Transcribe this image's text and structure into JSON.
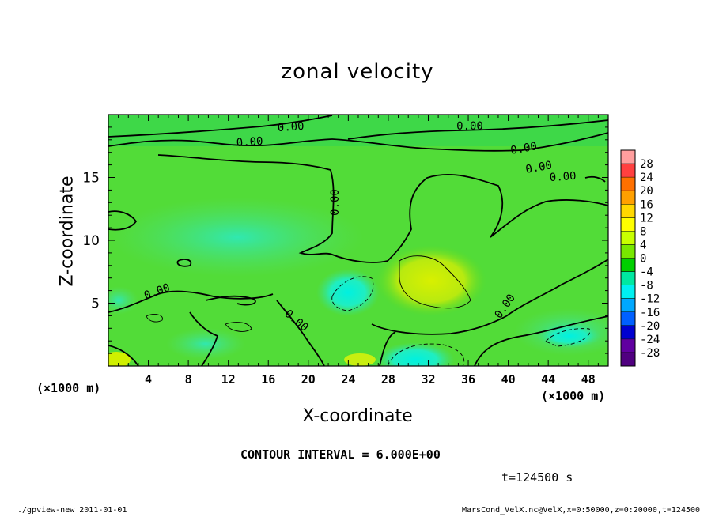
{
  "title": "zonal velocity",
  "xunit_left": "(×1000 m)",
  "xunit_right": "(×1000 m)",
  "contour_interval": "CONTOUR INTERVAL = 6.000E+00",
  "time_label": "t=124500 s",
  "footer_left": "./gpview-new  2011-01-01",
  "footer_right": "MarsCond_VelX.nc@VelX,x=0:50000,z=0:20000,t=124500",
  "chart_data": {
    "type": "heatmap",
    "title": "zonal velocity",
    "xlabel": "X-coordinate",
    "ylabel": "Z-coordinate",
    "xlim": [
      0,
      50
    ],
    "ylim": [
      0,
      20
    ],
    "x_ticks": [
      4,
      8,
      12,
      16,
      20,
      24,
      28,
      32,
      36,
      40,
      44,
      48
    ],
    "y_ticks": [
      5,
      10,
      15
    ],
    "contour_labels": [
      "0.00",
      "0.00",
      "0.00",
      "0.00",
      "0.00",
      "0.00",
      "0.00",
      "0.00",
      "0.00",
      "0.00"
    ],
    "colorbar_levels": [
      28,
      24,
      20,
      16,
      12,
      8,
      4,
      0,
      -4,
      -8,
      -12,
      -16,
      -20,
      -24,
      -28
    ],
    "colorbar_colors": [
      "#ff9e9e",
      "#ff4040",
      "#ff7000",
      "#ffa000",
      "#ffd800",
      "#ffff00",
      "#c8ff00",
      "#78e800",
      "#00d000",
      "#00e8a0",
      "#00f0f0",
      "#00a8ff",
      "#0060ff",
      "#0000d0",
      "#6000a0",
      "#500080"
    ],
    "features": [
      {
        "kind": "positive-max",
        "x": 31,
        "z": 7,
        "value": 8
      },
      {
        "kind": "negative-min",
        "x": 23,
        "z": 6,
        "value": -8
      },
      {
        "kind": "negative-min",
        "x": 31,
        "z": 1,
        "value": -8
      },
      {
        "kind": "negative-min",
        "x": 46,
        "z": 2.5,
        "value": -6
      }
    ]
  }
}
